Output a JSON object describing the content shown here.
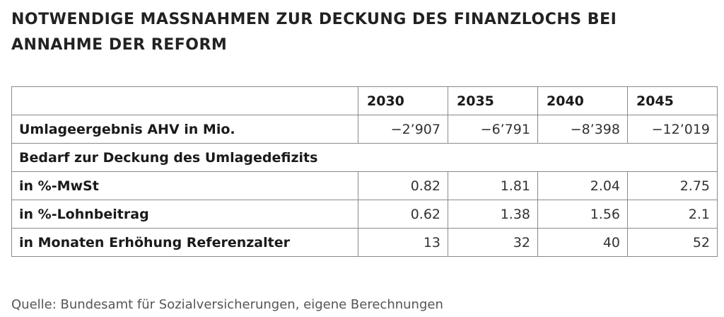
{
  "title": {
    "line1": "NOTWENDIGE MASSNAHMEN ZUR DECKUNG DES FINANZLOCHS BEI",
    "line2": "ANNAHME DER REFORM"
  },
  "table": {
    "corner": "",
    "years": [
      "2030",
      "2035",
      "2040",
      "2045"
    ],
    "rows": [
      {
        "label": "Umlageergebnis AHV in Mio.",
        "values": [
          "−2’907",
          "−6’791",
          "−8’398",
          "−12’019"
        ]
      },
      {
        "label": "Bedarf zur Deckung des Umlagedefizits",
        "values": []
      },
      {
        "label": "in %-MwSt",
        "values": [
          "0.82",
          "1.81",
          "2.04",
          "2.75"
        ]
      },
      {
        "label": "in %-Lohnbeitrag",
        "values": [
          "0.62",
          "1.38",
          "1.56",
          "2.1"
        ]
      },
      {
        "label": "in Monaten Erhöhung Referenzalter",
        "values": [
          "13",
          "32",
          "40",
          "52"
        ]
      }
    ]
  },
  "source": "Quelle: Bundesamt für Sozialversicherungen, eigene Berechnungen"
}
